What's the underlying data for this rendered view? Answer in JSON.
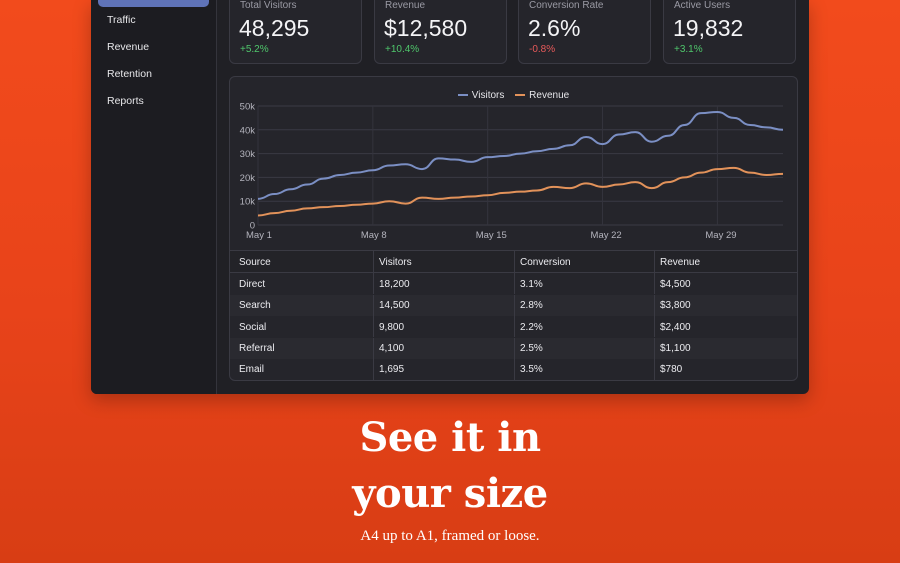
{
  "sidebar": {
    "items": [
      {
        "label": "Traffic"
      },
      {
        "label": "Revenue"
      },
      {
        "label": "Retention"
      },
      {
        "label": "Reports"
      }
    ]
  },
  "cards": [
    {
      "label": "Total Visitors",
      "value": "48,295",
      "change": "+5.2%",
      "trend": "up"
    },
    {
      "label": "Revenue",
      "value": "$12,580",
      "change": "+10.4%",
      "trend": "up"
    },
    {
      "label": "Conversion Rate",
      "value": "2.6%",
      "change": "-0.8%",
      "trend": "down"
    },
    {
      "label": "Active Users",
      "value": "19,832",
      "change": "+3.1%",
      "trend": "up"
    }
  ],
  "colors": {
    "visitors": "#7b8fc4",
    "revenue": "#e2925a",
    "accent": "#5f73b8",
    "up": "#4fc66b",
    "down": "#e85a5a"
  },
  "chart_data": {
    "type": "line",
    "x_ticks": [
      "May 1",
      "May 8",
      "May 15",
      "May 22",
      "May 29"
    ],
    "y_ticks": [
      "0",
      "10k",
      "20k",
      "30k",
      "40k",
      "50k"
    ],
    "ylim": [
      0,
      50000
    ],
    "xlim": [
      1,
      33
    ],
    "grid": true,
    "legend_placement": "top-center",
    "series": [
      {
        "name": "Visitors",
        "x": [
          1,
          2,
          3,
          4,
          5,
          6,
          7,
          8,
          9,
          10,
          11,
          12,
          13,
          14,
          15,
          16,
          17,
          18,
          19,
          20,
          21,
          22,
          23,
          24,
          25,
          26,
          27,
          28,
          29,
          30,
          31,
          32,
          33
        ],
        "values": [
          11000,
          13000,
          15000,
          17000,
          19500,
          21000,
          22000,
          23000,
          25000,
          25500,
          23500,
          28000,
          27500,
          26500,
          28500,
          29000,
          30000,
          31000,
          32000,
          33500,
          37000,
          34000,
          38000,
          39000,
          35000,
          37500,
          42000,
          47000,
          47500,
          45000,
          42000,
          41000,
          40000
        ]
      },
      {
        "name": "Revenue",
        "x": [
          1,
          2,
          3,
          4,
          5,
          6,
          7,
          8,
          9,
          10,
          11,
          12,
          13,
          14,
          15,
          16,
          17,
          18,
          19,
          20,
          21,
          22,
          23,
          24,
          25,
          26,
          27,
          28,
          29,
          30,
          31,
          32,
          33
        ],
        "values": [
          4000,
          5000,
          6000,
          7000,
          7500,
          8000,
          8500,
          9000,
          10000,
          9000,
          11500,
          11000,
          11500,
          12000,
          12500,
          13500,
          14000,
          14500,
          16000,
          15500,
          17500,
          16000,
          17000,
          18000,
          15500,
          18000,
          20000,
          22000,
          23500,
          24000,
          22000,
          21000,
          21500
        ]
      }
    ]
  },
  "table": {
    "headers": [
      "Source",
      "Visitors",
      "Conversion",
      "Revenue"
    ],
    "rows": [
      [
        "Direct",
        "18,200",
        "3.1%",
        "$4,500"
      ],
      [
        "Search",
        "14,500",
        "2.8%",
        "$3,800"
      ],
      [
        "Social",
        "9,800",
        "2.2%",
        "$2,400"
      ],
      [
        "Referral",
        "4,100",
        "2.5%",
        "$1,100"
      ],
      [
        "Email",
        "1,695",
        "3.5%",
        "$780"
      ]
    ]
  },
  "promo": {
    "title_line1": "See it in",
    "title_line2": "your size",
    "subtitle": "A4 up to A1, framed or loose."
  }
}
